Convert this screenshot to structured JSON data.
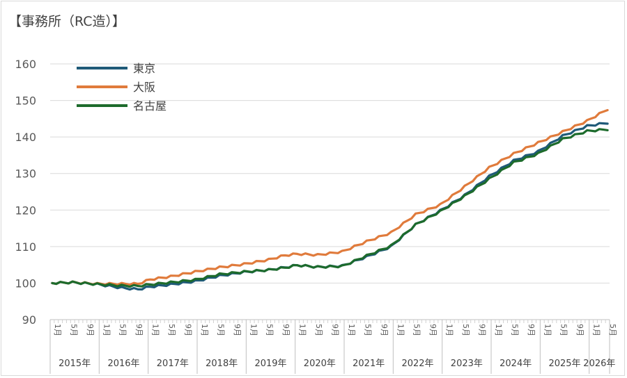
{
  "chart_title": "【事務所（RC造）】",
  "chart_data": {
    "type": "line",
    "title": "【事務所（RC造）】",
    "xlabel": "",
    "ylabel": "",
    "ylim": [
      90,
      160
    ],
    "yticks": [
      90,
      100,
      110,
      120,
      130,
      140,
      150,
      160
    ],
    "grid": "horizontal",
    "legend_position": "top-left",
    "x_start": "2015-01",
    "x_end": "2026-05",
    "years": [
      "2015年",
      "2016年",
      "2017年",
      "2018年",
      "2019年",
      "2020年",
      "2021年",
      "2022年",
      "2023年",
      "2024年",
      "2025年",
      "2026年"
    ],
    "month_ticks": [
      "1月",
      "5月",
      "9月"
    ],
    "series": [
      {
        "name": "東京",
        "color": "#1f5a78",
        "points": [
          [
            "2015-01",
            100
          ],
          [
            "2015-06",
            100.2
          ],
          [
            "2015-12",
            99.7
          ],
          [
            "2016-06",
            98.7
          ],
          [
            "2016-10",
            98.3
          ],
          [
            "2017-01",
            99.0
          ],
          [
            "2017-06",
            99.6
          ],
          [
            "2017-12",
            100.5
          ],
          [
            "2018-06",
            102.0
          ],
          [
            "2018-12",
            103.0
          ],
          [
            "2019-06",
            103.6
          ],
          [
            "2019-10",
            104.3
          ],
          [
            "2020-01",
            104.9
          ],
          [
            "2020-06",
            104.4
          ],
          [
            "2020-12",
            104.7
          ],
          [
            "2021-06",
            107.2
          ],
          [
            "2021-12",
            110.0
          ],
          [
            "2022-06",
            116.0
          ],
          [
            "2022-12",
            119.8
          ],
          [
            "2023-06",
            124.0
          ],
          [
            "2023-12",
            129.2
          ],
          [
            "2024-06",
            133.5
          ],
          [
            "2024-12",
            136.0
          ],
          [
            "2025-06",
            140.3
          ],
          [
            "2025-12",
            143.0
          ],
          [
            "2026-05",
            143.9
          ]
        ]
      },
      {
        "name": "大阪",
        "color": "#e07b3c",
        "points": [
          [
            "2015-01",
            100
          ],
          [
            "2015-06",
            100.2
          ],
          [
            "2015-12",
            99.8
          ],
          [
            "2016-06",
            99.8
          ],
          [
            "2016-10",
            99.8
          ],
          [
            "2017-01",
            101.0
          ],
          [
            "2017-06",
            101.8
          ],
          [
            "2017-12",
            103.1
          ],
          [
            "2018-06",
            104.3
          ],
          [
            "2018-12",
            105.2
          ],
          [
            "2019-06",
            106.4
          ],
          [
            "2019-10",
            107.6
          ],
          [
            "2020-01",
            108.0
          ],
          [
            "2020-06",
            107.7
          ],
          [
            "2020-12",
            108.6
          ],
          [
            "2021-06",
            111.4
          ],
          [
            "2021-12",
            113.8
          ],
          [
            "2022-06",
            118.8
          ],
          [
            "2022-12",
            121.4
          ],
          [
            "2023-06",
            126.4
          ],
          [
            "2023-12",
            131.6
          ],
          [
            "2024-06",
            135.4
          ],
          [
            "2024-12",
            138.4
          ],
          [
            "2025-06",
            141.4
          ],
          [
            "2025-12",
            144.4
          ],
          [
            "2026-05",
            147.6
          ]
        ]
      },
      {
        "name": "名古屋",
        "color": "#1d6b2c",
        "points": [
          [
            "2015-01",
            100
          ],
          [
            "2015-06",
            100.2
          ],
          [
            "2015-12",
            99.7
          ],
          [
            "2016-06",
            99.3
          ],
          [
            "2016-10",
            99.2
          ],
          [
            "2017-01",
            99.6
          ],
          [
            "2017-06",
            100.2
          ],
          [
            "2017-12",
            100.9
          ],
          [
            "2018-06",
            102.4
          ],
          [
            "2018-12",
            103.1
          ],
          [
            "2019-06",
            103.6
          ],
          [
            "2019-10",
            104.2
          ],
          [
            "2020-01",
            104.9
          ],
          [
            "2020-06",
            104.4
          ],
          [
            "2020-12",
            104.6
          ],
          [
            "2021-06",
            107.5
          ],
          [
            "2021-12",
            110.2
          ],
          [
            "2022-06",
            116.0
          ],
          [
            "2022-12",
            119.6
          ],
          [
            "2023-06",
            123.8
          ],
          [
            "2023-12",
            128.5
          ],
          [
            "2024-06",
            133.0
          ],
          [
            "2024-12",
            135.4
          ],
          [
            "2025-06",
            139.4
          ],
          [
            "2025-12",
            141.6
          ],
          [
            "2026-05",
            142.1
          ]
        ]
      }
    ]
  }
}
